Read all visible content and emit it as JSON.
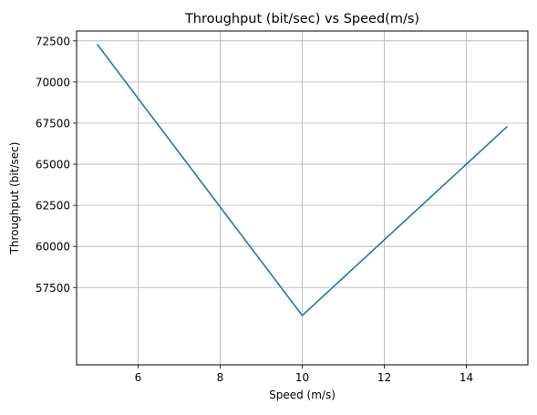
{
  "chart_data": {
    "type": "line",
    "title": "Throughput (bit/sec) vs Speed(m/s)",
    "xlabel": "Speed (m/s)",
    "ylabel": "Throughput (bit/sec)",
    "xlim": [
      4.5,
      15.5
    ],
    "ylim": [
      52800,
      73100
    ],
    "xticks": [
      6,
      8,
      10,
      12,
      14
    ],
    "yticks": [
      57500,
      60000,
      62500,
      65000,
      67500,
      70000,
      72500
    ],
    "grid": true,
    "series": [
      {
        "x": [
          5,
          10,
          15
        ],
        "y": [
          72300,
          55800,
          67300
        ]
      }
    ],
    "colors": {
      "line": "#1f77b4",
      "grid": "#b0b0b0",
      "axes": "#000000"
    }
  }
}
